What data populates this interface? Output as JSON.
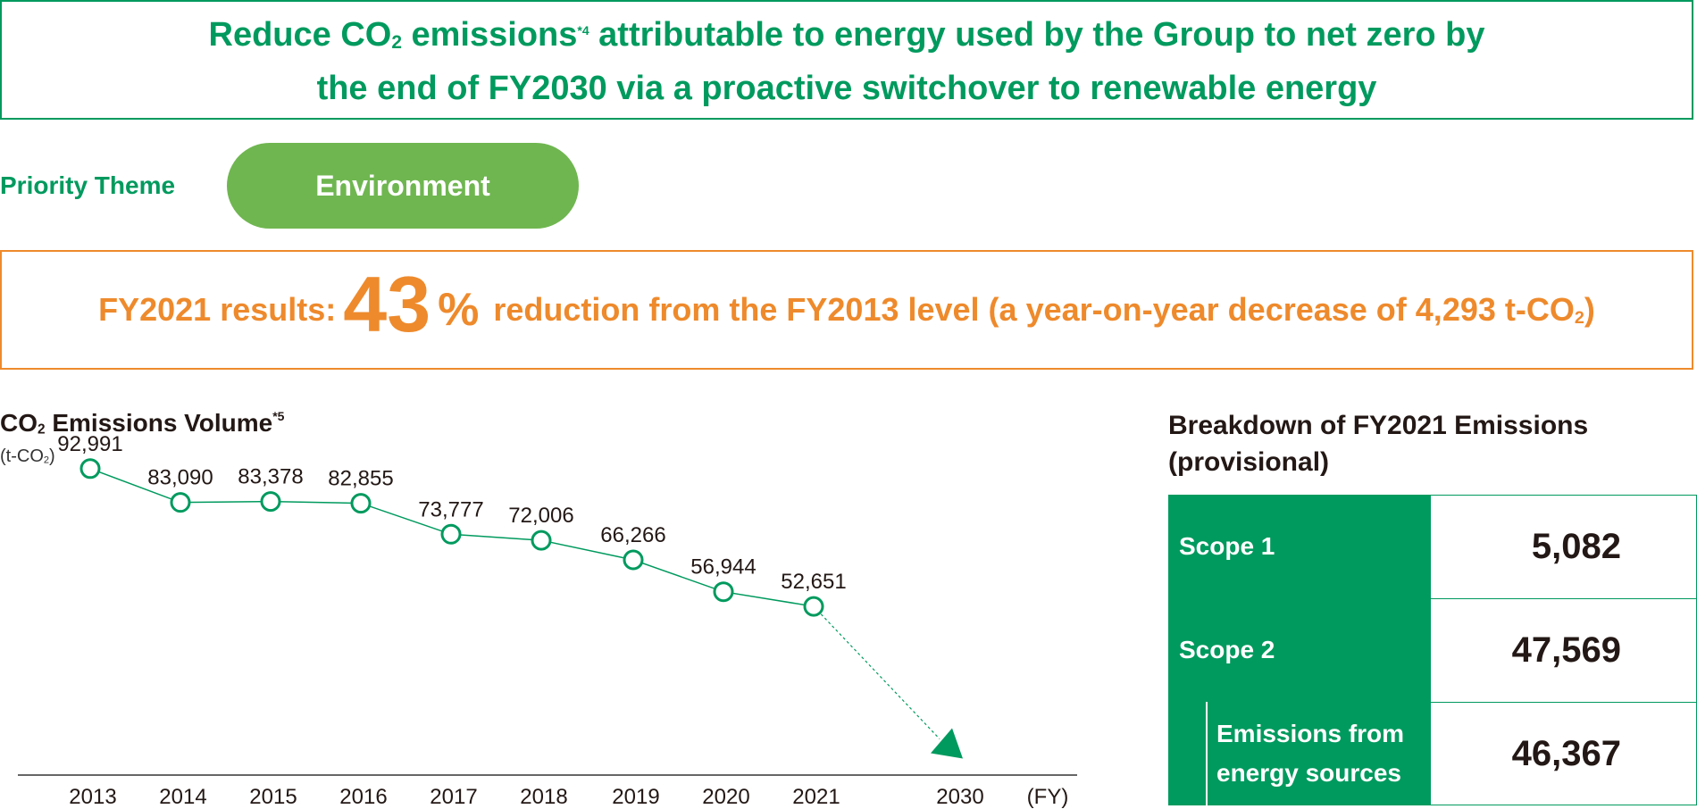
{
  "goal": {
    "line1_a": "Reduce CO",
    "line1_sub": "2",
    "line1_b": " emissions",
    "line1_ref": "*4",
    "line1_c": " attributable to energy used by the Group to net zero by",
    "line2": "the end of FY2030 via a proactive switchover to renewable energy"
  },
  "priority": {
    "label": "Priority Theme",
    "theme": "Environment"
  },
  "results": {
    "prefix": "FY2021 results:",
    "value": "43",
    "unit": "%",
    "suffix": "reduction from the FY2013 level (a year-on-year decrease of 4,293 t-CO",
    "suffix_sub": "2",
    "suffix_end": ")"
  },
  "chart_data": {
    "type": "line",
    "title_a": "CO",
    "title_sub": "2",
    "title_b": " Emissions Volume",
    "title_ref": "*5",
    "unit_a": "(t-CO",
    "unit_sub": "2",
    "unit_b": ")",
    "x": [
      "2013",
      "2014",
      "2015",
      "2016",
      "2017",
      "2018",
      "2019",
      "2020",
      "2021"
    ],
    "values": [
      92991,
      83090,
      83378,
      82855,
      73777,
      72006,
      66266,
      56944,
      52651
    ],
    "value_labels": [
      "92,991",
      "83,090",
      "83,378",
      "82,855",
      "73,777",
      "72,006",
      "66,266",
      "56,944",
      "52,651"
    ],
    "target": {
      "x": "2030",
      "value": 0
    },
    "x_axis_suffix": "(FY)",
    "colors": {
      "line": "#009a5e",
      "axis": "#333333"
    }
  },
  "breakdown": {
    "title_line1": "Breakdown of FY2021 Emissions",
    "title_line2": "(provisional)",
    "rows": [
      {
        "label": "Scope 1",
        "value": "5,082"
      },
      {
        "label": "Scope 2",
        "value": "47,569"
      },
      {
        "label_line1": "Emissions from",
        "label_line2": "energy sources",
        "value": "46,367"
      }
    ]
  }
}
